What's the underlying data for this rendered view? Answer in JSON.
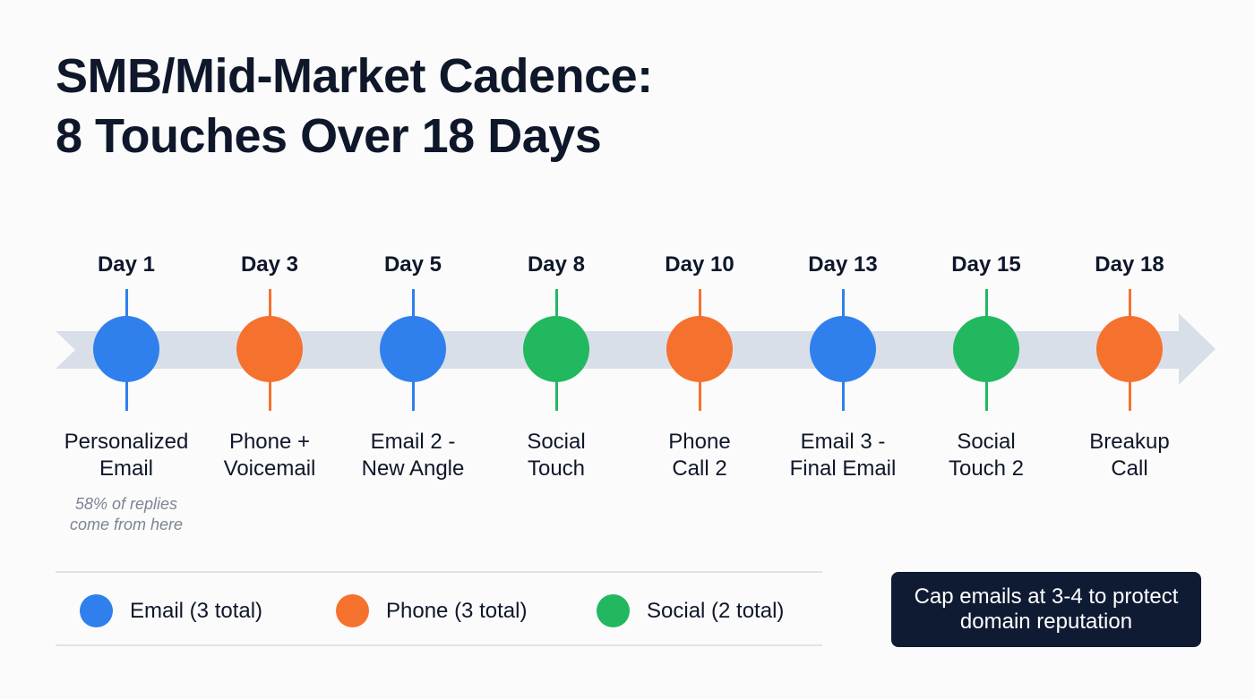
{
  "title": {
    "line1": "SMB/Mid-Market Cadence:",
    "line2": "8 Touches Over 18 Days"
  },
  "colors": {
    "email": "#2f80ed",
    "phone": "#f5722e",
    "social": "#22b860",
    "band": "#d9dfe9"
  },
  "touches": [
    {
      "day": "Day 1",
      "label1": "Personalized",
      "label2": "Email",
      "type": "email",
      "note1": "58% of replies",
      "note2": "come from here"
    },
    {
      "day": "Day 3",
      "label1": "Phone +",
      "label2": "Voicemail",
      "type": "phone"
    },
    {
      "day": "Day 5",
      "label1": "Email 2 -",
      "label2": "New Angle",
      "type": "email"
    },
    {
      "day": "Day 8",
      "label1": "Social",
      "label2": "Touch",
      "type": "social"
    },
    {
      "day": "Day 10",
      "label1": "Phone",
      "label2": "Call 2",
      "type": "phone"
    },
    {
      "day": "Day 13",
      "label1": "Email 3 -",
      "label2": "Final Email",
      "type": "email"
    },
    {
      "day": "Day 15",
      "label1": "Social",
      "label2": "Touch 2",
      "type": "social"
    },
    {
      "day": "Day 18",
      "label1": "Breakup",
      "label2": "Call",
      "type": "phone"
    }
  ],
  "legend": [
    {
      "type": "email",
      "label": "Email (3 total)"
    },
    {
      "type": "phone",
      "label": "Phone (3 total)"
    },
    {
      "type": "social",
      "label": "Social (2 total)"
    }
  ],
  "callout": {
    "line1": "Cap emails at 3-4 to protect",
    "line2": "domain reputation"
  }
}
